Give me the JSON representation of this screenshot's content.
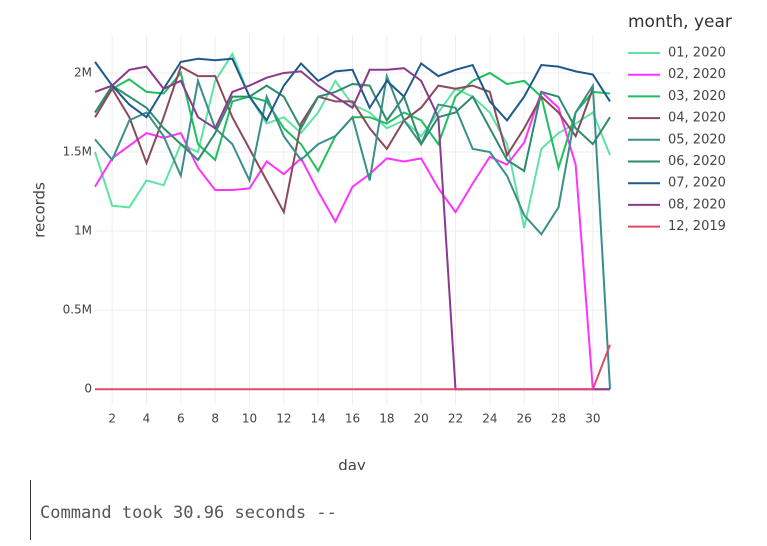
{
  "chart_data": {
    "type": "line",
    "x_label": "day",
    "y_label": "records",
    "legend_title": "month, year",
    "x": [
      1,
      2,
      3,
      4,
      5,
      6,
      7,
      8,
      9,
      10,
      11,
      12,
      13,
      14,
      15,
      16,
      17,
      18,
      19,
      20,
      21,
      22,
      23,
      24,
      25,
      26,
      27,
      28,
      29,
      30,
      31
    ],
    "xlim": [
      1,
      31
    ],
    "xticks": [
      2,
      4,
      6,
      8,
      10,
      12,
      14,
      16,
      18,
      20,
      22,
      24,
      26,
      28,
      30
    ],
    "ylim": [
      -100000,
      2240000
    ],
    "yticks": [
      0,
      {
        "value": 500000,
        "label": "0.5M"
      },
      {
        "value": 1000000,
        "label": "1M"
      },
      {
        "value": 1500000,
        "label": "1.5M"
      },
      {
        "value": 2000000,
        "label": "2M"
      }
    ],
    "grid": true,
    "legend": "right",
    "series": [
      {
        "name": "01, 2020",
        "color": "#5fe3a1",
        "values": [
          1500000,
          1160000,
          1150000,
          1320000,
          1290000,
          1550000,
          1500000,
          1950000,
          2120000,
          1850000,
          1680000,
          1720000,
          1620000,
          1750000,
          1950000,
          1800000,
          1750000,
          1650000,
          1700000,
          1600000,
          1750000,
          1900000,
          1850000,
          1750000,
          1550000,
          1020000,
          1520000,
          1620000,
          1680000,
          1750000,
          1480000
        ]
      },
      {
        "name": "02, 2020",
        "color": "#ff33ff",
        "values": [
          1280000,
          1460000,
          1540000,
          1620000,
          1590000,
          1620000,
          1400000,
          1260000,
          1260000,
          1270000,
          1440000,
          1360000,
          1460000,
          1250000,
          1060000,
          1280000,
          1360000,
          1460000,
          1440000,
          1460000,
          1270000,
          1120000,
          1300000,
          1470000,
          1420000,
          1560000,
          1880000,
          1780000,
          1420000,
          0,
          0
        ]
      },
      {
        "name": "03, 2020",
        "color": "#1fbf5f",
        "values": [
          1750000,
          1900000,
          1960000,
          1880000,
          1870000,
          2000000,
          1550000,
          1450000,
          1820000,
          1850000,
          1820000,
          1650000,
          1550000,
          1380000,
          1600000,
          1720000,
          1720000,
          1680000,
          1750000,
          1700000,
          1550000,
          1850000,
          1950000,
          2000000,
          1930000,
          1950000,
          1850000,
          1400000,
          1750000,
          1880000,
          1870000
        ]
      },
      {
        "name": "04, 2020",
        "color": "#8b4a5a",
        "values": [
          1720000,
          1900000,
          1720000,
          1430000,
          1720000,
          2040000,
          1980000,
          1980000,
          1720000,
          1520000,
          1320000,
          1120000,
          1680000,
          1850000,
          1820000,
          1820000,
          1650000,
          1520000,
          1700000,
          1780000,
          1920000,
          1900000,
          1920000,
          1880000,
          1480000,
          1650000,
          1850000,
          1750000,
          1600000,
          1900000,
          null
        ]
      },
      {
        "name": "05, 2020",
        "color": "#3a8f8a",
        "values": [
          1580000,
          1450000,
          1700000,
          1750000,
          1600000,
          1350000,
          1950000,
          1650000,
          1550000,
          1320000,
          1850000,
          1600000,
          1450000,
          1550000,
          1600000,
          1720000,
          1320000,
          1980000,
          1700000,
          1550000,
          1800000,
          1780000,
          1520000,
          1500000,
          1350000,
          1100000,
          980000,
          1150000,
          1750000,
          1920000,
          0
        ]
      },
      {
        "name": "06, 2020",
        "color": "#2e8b6e",
        "values": [
          1750000,
          1920000,
          1850000,
          1780000,
          1650000,
          1550000,
          1450000,
          1620000,
          1850000,
          1850000,
          1920000,
          1850000,
          1650000,
          1850000,
          1880000,
          1930000,
          1920000,
          1700000,
          1850000,
          1550000,
          1720000,
          1750000,
          1850000,
          1650000,
          1450000,
          1380000,
          1880000,
          1850000,
          1650000,
          1550000,
          1720000
        ]
      },
      {
        "name": "07, 2020",
        "color": "#1f5a8a",
        "values": [
          2070000,
          1920000,
          1800000,
          1720000,
          1900000,
          2070000,
          2090000,
          2080000,
          2090000,
          1850000,
          1700000,
          1920000,
          2060000,
          1950000,
          2010000,
          2020000,
          1780000,
          1950000,
          1850000,
          2060000,
          1980000,
          2020000,
          2050000,
          1820000,
          1700000,
          1850000,
          2050000,
          2040000,
          2010000,
          1990000,
          1820000
        ]
      },
      {
        "name": "08, 2020",
        "color": "#8b3a8b",
        "values": [
          1880000,
          1920000,
          2020000,
          2040000,
          1900000,
          1950000,
          1720000,
          1650000,
          1880000,
          1920000,
          1970000,
          2000000,
          2010000,
          1920000,
          1850000,
          1780000,
          2020000,
          2020000,
          2030000,
          1950000,
          1720000,
          0,
          0,
          0,
          0,
          0,
          0,
          0,
          0,
          0,
          0
        ]
      },
      {
        "name": "12, 2019",
        "color": "#e04a6a",
        "values": [
          0,
          0,
          0,
          0,
          0,
          0,
          0,
          0,
          0,
          0,
          0,
          0,
          0,
          0,
          0,
          0,
          0,
          0,
          0,
          0,
          0,
          0,
          0,
          0,
          0,
          0,
          0,
          0,
          0,
          0,
          280000
        ]
      }
    ]
  },
  "command_output": "Command took 30.96 seconds --"
}
